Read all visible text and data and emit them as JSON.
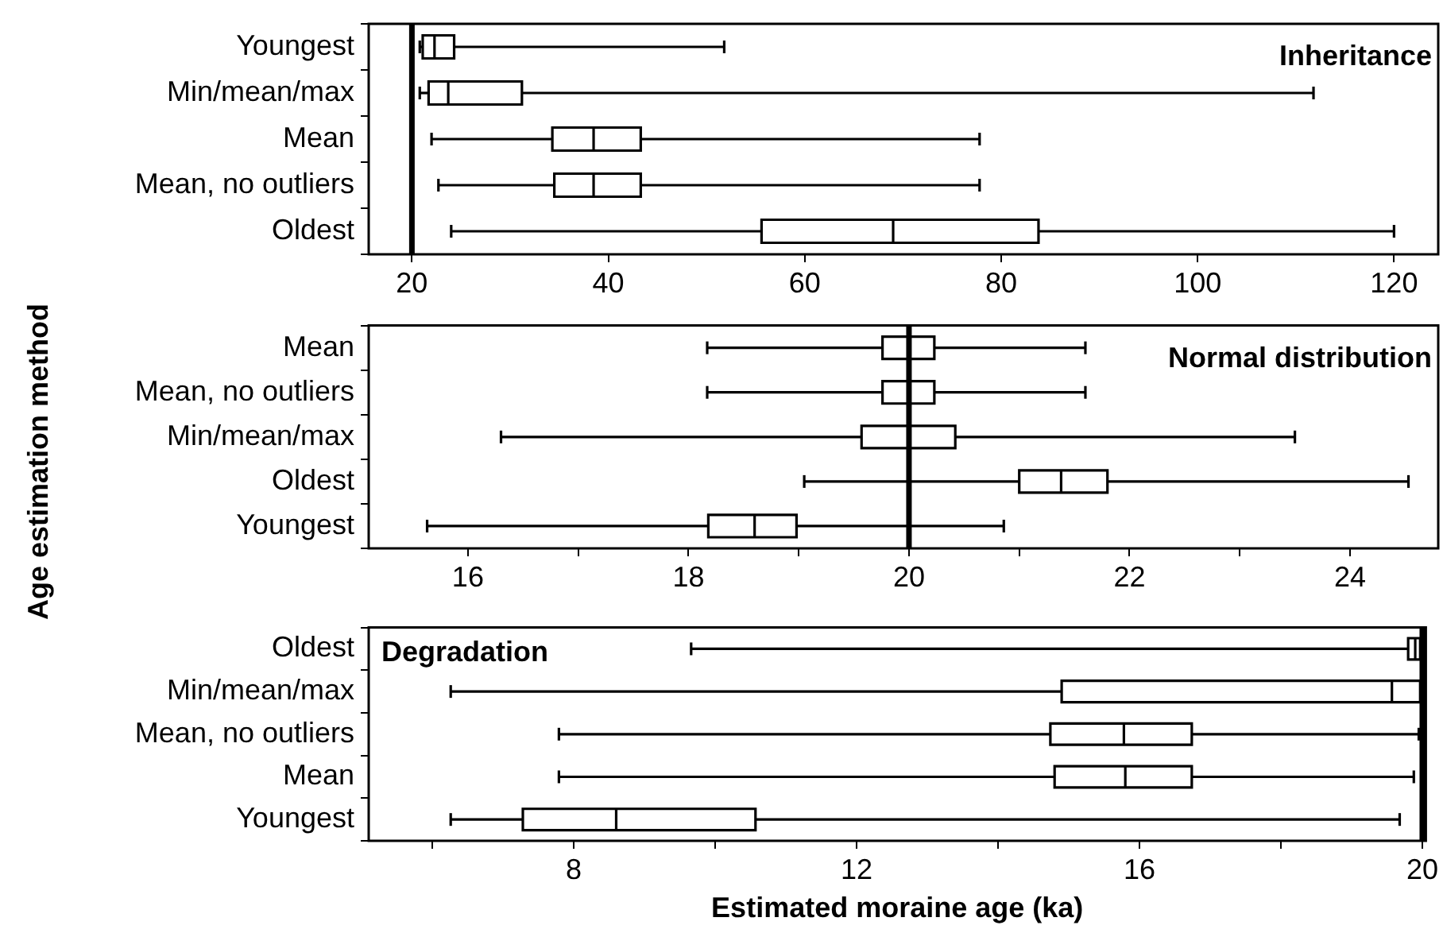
{
  "chart_data": [
    {
      "type": "box",
      "orientation": "horizontal",
      "title": "Inheritance",
      "categories": [
        "Youngest",
        "Min/mean/max",
        "Mean",
        "Mean, no outliers",
        "Oldest"
      ],
      "boxes": [
        {
          "low": 20.8,
          "q1": 21.1,
          "median": 22.3,
          "q3": 24.3,
          "high": 51.8
        },
        {
          "low": 20.8,
          "q1": 21.7,
          "median": 23.7,
          "q3": 31.2,
          "high": 111.8
        },
        {
          "low": 22,
          "q1": 34.3,
          "median": 38.5,
          "q3": 43.3,
          "high": 77.8
        },
        {
          "low": 22.7,
          "q1": 34.5,
          "median": 38.5,
          "q3": 43.3,
          "high": 77.8
        },
        {
          "low": 24,
          "q1": 55.6,
          "median": 69,
          "q3": 83.8,
          "high": 120
        }
      ],
      "xlim": [
        15.6,
        124.5
      ],
      "xticks": [
        20,
        40,
        60,
        80,
        100,
        120
      ],
      "ref_lines": [
        {
          "axis": "x",
          "value": 20
        }
      ]
    },
    {
      "type": "box",
      "orientation": "horizontal",
      "title": "Normal distribution",
      "ylabel": "Age estimation method",
      "categories": [
        "Mean",
        "Mean, no outliers",
        "Min/mean/max",
        "Oldest",
        "Youngest"
      ],
      "boxes": [
        {
          "low": 18.17,
          "q1": 19.76,
          "median": 20,
          "q3": 20.23,
          "high": 21.6
        },
        {
          "low": 18.17,
          "q1": 19.76,
          "median": 20,
          "q3": 20.23,
          "high": 21.6
        },
        {
          "low": 16.3,
          "q1": 19.57,
          "median": 20,
          "q3": 20.42,
          "high": 23.5
        },
        {
          "low": 19.05,
          "q1": 21,
          "median": 21.38,
          "q3": 21.8,
          "high": 24.53
        },
        {
          "low": 15.63,
          "q1": 18.18,
          "median": 18.6,
          "q3": 18.98,
          "high": 20.86
        }
      ],
      "xlim": [
        15.1,
        24.8
      ],
      "xticks": [
        16,
        {
          "value": 17,
          "label": null
        },
        18,
        {
          "value": 19,
          "label": null
        },
        20,
        {
          "value": 21,
          "label": null
        },
        22,
        {
          "value": 23,
          "label": null
        },
        24
      ],
      "ref_lines": [
        {
          "axis": "x",
          "value": 20
        }
      ]
    },
    {
      "type": "box",
      "orientation": "horizontal",
      "title": "Degradation",
      "xlabel": "Estimated moraine age (ka)",
      "categories": [
        "Oldest",
        "Min/mean/max",
        "Mean, no outliers",
        "Mean",
        "Youngest"
      ],
      "boxes": [
        {
          "low": 9.66,
          "q1": 19.8,
          "median": 19.9,
          "q3": 19.97,
          "high": 20
        },
        {
          "low": 6.26,
          "q1": 14.9,
          "median": 19.57,
          "q3": 19.97,
          "high": 20
        },
        {
          "low": 7.79,
          "q1": 14.74,
          "median": 15.78,
          "q3": 16.74,
          "high": 19.95
        },
        {
          "low": 7.79,
          "q1": 14.8,
          "median": 15.8,
          "q3": 16.74,
          "high": 19.88
        },
        {
          "low": 6.26,
          "q1": 7.28,
          "median": 8.6,
          "q3": 10.57,
          "high": 19.68
        }
      ],
      "xlim": [
        5.1,
        20.05
      ],
      "xticks": [
        {
          "value": 6,
          "label": null
        },
        8,
        {
          "value": 10,
          "label": null
        },
        12,
        {
          "value": 14,
          "label": null
        },
        16,
        {
          "value": 18,
          "label": null
        },
        20
      ],
      "ref_lines": [
        {
          "axis": "x",
          "value": 20
        }
      ]
    }
  ]
}
